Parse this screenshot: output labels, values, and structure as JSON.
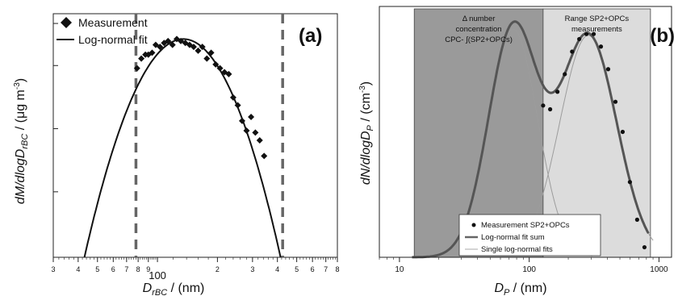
{
  "chart_data": [
    {
      "panel_label": "(a)",
      "type": "scatter",
      "xlabel_main": "D",
      "xlabel_sub": "rBC",
      "xlabel_unit": " / (nm)",
      "ylabel_main": "dM/dlogD",
      "ylabel_sub": "rBC",
      "ylabel_unit": " / (μg m",
      "ylabel_exp": "-3",
      "ylabel_close": ")",
      "x_scale": "log",
      "xlim": [
        30,
        800
      ],
      "ylim": [
        0,
        1
      ],
      "x_tick_labels": [
        {
          "x": 30,
          "label": "3"
        },
        {
          "x": 40,
          "label": "4"
        },
        {
          "x": 50,
          "label": "5"
        },
        {
          "x": 60,
          "label": "6"
        },
        {
          "x": 70,
          "label": "7"
        },
        {
          "x": 80,
          "label": "8"
        },
        {
          "x": 90,
          "label": "9"
        },
        {
          "x": 100,
          "label": "100"
        },
        {
          "x": 200,
          "label": "2"
        },
        {
          "x": 300,
          "label": "3"
        },
        {
          "x": 400,
          "label": "4"
        },
        {
          "x": 500,
          "label": "5"
        },
        {
          "x": 600,
          "label": "6"
        },
        {
          "x": 700,
          "label": "7"
        },
        {
          "x": 800,
          "label": "8"
        }
      ],
      "y_ticks": [
        0,
        0.28,
        0.55,
        0.82,
        1.0
      ],
      "vlines": [
        78,
        425
      ],
      "legend": [
        "Measurement",
        "Log-normal fit"
      ],
      "legend_position": "top-left",
      "series": [
        {
          "name": "Measurement",
          "x": [
            79,
            83,
            87,
            90,
            94,
            98,
            103,
            108,
            113,
            119,
            125,
            131,
            138,
            145,
            152,
            160,
            168,
            177,
            186,
            196,
            206,
            217,
            228,
            240,
            253,
            266,
            280,
            295,
            310,
            326,
            343
          ],
          "y": [
            0.97,
            1.02,
            1.04,
            1.04,
            1.05,
            1.09,
            1.08,
            1.1,
            1.11,
            1.09,
            1.12,
            1.11,
            1.1,
            1.09,
            1.08,
            1.06,
            1.08,
            1.02,
            1.05,
            0.99,
            0.97,
            0.95,
            0.94,
            0.82,
            0.78,
            0.7,
            0.65,
            0.72,
            0.64,
            0.6,
            0.52
          ]
        },
        {
          "name": "Log-normal fit",
          "mode_nm": 135,
          "peak": 1.12,
          "x_range": [
            43,
            415
          ]
        }
      ]
    },
    {
      "panel_label": "(b)",
      "type": "scatter",
      "xlabel_main": "D",
      "xlabel_sub": "P",
      "xlabel_unit": " / (nm)",
      "ylabel_main": "dN/dlogD",
      "ylabel_sub": "P",
      "ylabel_unit": " / (cm",
      "ylabel_exp": "-3",
      "ylabel_close": ")",
      "x_scale": "log",
      "xlim": [
        7,
        1250
      ],
      "ylim": [
        0,
        1
      ],
      "x_tick_labels": [
        {
          "x": 10,
          "label": "10"
        },
        {
          "x": 100,
          "label": "100"
        },
        {
          "x": 1000,
          "label": "1000"
        }
      ],
      "regions": [
        {
          "x_range": [
            13,
            128
          ],
          "lines": [
            "Δ number",
            "concentration",
            "CPC- ∫(SP2+OPCs)"
          ],
          "color": "#9a9a9a"
        },
        {
          "x_range": [
            128,
            860
          ],
          "lines": [
            "Range SP2+OPCs",
            "measurements"
          ],
          "color": "#dcdcdc"
        }
      ],
      "legend": [
        "Measurement SP2+OPCs",
        "Log-normal fit sum",
        "Single log-normal fits"
      ],
      "legend_position": "bottom-right",
      "series": [
        {
          "name": "Measurement SP2+OPCs",
          "x": [
            128,
            145,
            165,
            188,
            214,
            243,
            276,
            314,
            357,
            406,
            462,
            525,
            597,
            679,
            773
          ],
          "y": [
            0.605,
            0.59,
            0.66,
            0.73,
            0.82,
            0.87,
            0.89,
            0.89,
            0.84,
            0.75,
            0.62,
            0.5,
            0.3,
            0.15,
            0.04
          ]
        },
        {
          "name": "Log-normal fit sum",
          "components": [
            {
              "mode_nm": 75,
              "peak": 0.91,
              "sigma_log10": 0.19
            },
            {
              "mode_nm": 285,
              "peak": 0.885,
              "sigma_log10": 0.22
            }
          ]
        },
        {
          "name": "Single log-normal fits",
          "components": [
            {
              "mode_nm": 75,
              "peak": 0.91,
              "sigma_log10": 0.19
            },
            {
              "mode_nm": 285,
              "peak": 0.885,
              "sigma_log10": 0.22
            }
          ]
        }
      ]
    }
  ]
}
